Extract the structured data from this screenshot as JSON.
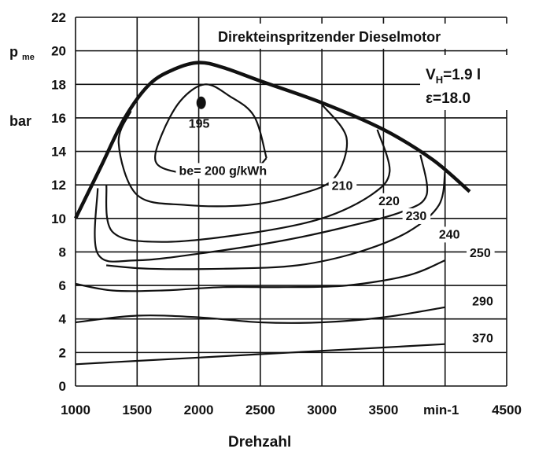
{
  "chart_data": {
    "type": "line",
    "title": "Direkteinspritzender Dieselmotor",
    "annotations": {
      "displacement": "1.9 l",
      "compression": "ε=18.0"
    },
    "xlabel": "Drehzahl",
    "x_unit": "min-1",
    "ylabel": "p",
    "ylabel_sub": "me",
    "y_unit": "bar",
    "xlim": [
      1000,
      4500
    ],
    "ylim": [
      0,
      22
    ],
    "x_ticks": [
      "1000",
      "1500",
      "2000",
      "2500",
      "3000",
      "3500",
      "4500"
    ],
    "y_ticks": [
      "0",
      "2",
      "4",
      "6",
      "8",
      "10",
      "12",
      "14",
      "16",
      "18",
      "20",
      "22"
    ],
    "grid": true,
    "full_load": [
      [
        1000,
        10
      ],
      [
        1200,
        13
      ],
      [
        1400,
        16
      ],
      [
        1600,
        18
      ],
      [
        1800,
        18.9
      ],
      [
        2000,
        19.3
      ],
      [
        2200,
        19
      ],
      [
        2500,
        18.2
      ],
      [
        3000,
        16.9
      ],
      [
        3500,
        15.3
      ],
      [
        3900,
        13.5
      ],
      [
        4200,
        11.6
      ]
    ],
    "optimum_point": {
      "x": 2020,
      "y": 16.9,
      "label": "195"
    },
    "series": [
      {
        "name": "be= 200 g/kWh",
        "label_pos": [
          1840,
          12.6
        ],
        "points": [
          [
            2550,
            13.6
          ],
          [
            2450,
            16.1
          ],
          [
            2250,
            17.3
          ],
          [
            2050,
            18.0
          ],
          [
            1850,
            17.0
          ],
          [
            1700,
            15.0
          ],
          [
            1650,
            13.4
          ],
          [
            1800,
            12.8
          ],
          [
            2000,
            12.8
          ],
          [
            2200,
            12.9
          ],
          [
            2450,
            13.0
          ],
          [
            2550,
            13.6
          ]
        ]
      },
      {
        "name": "210",
        "label_pos": [
          3080,
          11.7
        ],
        "points": [
          [
            3000,
            16.8
          ],
          [
            3200,
            14.8
          ],
          [
            3100,
            12.4
          ],
          [
            2800,
            11.4
          ],
          [
            2400,
            10.8
          ],
          [
            1900,
            10.8
          ],
          [
            1500,
            11.4
          ],
          [
            1350,
            14.5
          ],
          [
            1450,
            16.4
          ]
        ]
      },
      {
        "name": "220",
        "label_pos": [
          3460,
          10.8
        ],
        "points": [
          [
            3450,
            15.3
          ],
          [
            3550,
            12.8
          ],
          [
            3400,
            11.4
          ],
          [
            3000,
            10.0
          ],
          [
            2400,
            9.1
          ],
          [
            1700,
            8.6
          ],
          [
            1300,
            9.2
          ],
          [
            1250,
            12.0
          ]
        ]
      },
      {
        "name": "230",
        "label_pos": [
          3680,
          9.9
        ],
        "points": [
          [
            3800,
            13.8
          ],
          [
            3850,
            11.4
          ],
          [
            3650,
            10.4
          ],
          [
            3200,
            9.5
          ],
          [
            2700,
            8.7
          ],
          [
            2100,
            8.0
          ],
          [
            1500,
            7.5
          ],
          [
            1180,
            7.9
          ],
          [
            1180,
            11.8
          ]
        ]
      },
      {
        "name": "240",
        "label_pos": [
          3950,
          8.8
        ],
        "points": [
          [
            4000,
            12.8
          ],
          [
            3950,
            10.8
          ],
          [
            3700,
            9.2
          ],
          [
            3300,
            8.0
          ],
          [
            2800,
            7.2
          ],
          [
            2200,
            7.0
          ],
          [
            1600,
            7.0
          ],
          [
            1250,
            7.2
          ]
        ]
      },
      {
        "name": "250",
        "label_pos": [
          4200,
          7.7
        ],
        "points": [
          [
            1000,
            6.1
          ],
          [
            1300,
            5.7
          ],
          [
            1700,
            5.7
          ],
          [
            2200,
            5.9
          ],
          [
            2700,
            5.9
          ],
          [
            3200,
            6.0
          ],
          [
            3700,
            6.6
          ],
          [
            4000,
            7.5
          ]
        ]
      },
      {
        "name": "290",
        "label_pos": [
          4220,
          4.8
        ],
        "points": [
          [
            1000,
            3.8
          ],
          [
            1500,
            4.2
          ],
          [
            2000,
            4.1
          ],
          [
            2500,
            3.8
          ],
          [
            3000,
            3.8
          ],
          [
            3500,
            4.1
          ],
          [
            4000,
            4.7
          ]
        ]
      },
      {
        "name": "370",
        "label_pos": [
          4220,
          2.6
        ],
        "points": [
          [
            1000,
            1.3
          ],
          [
            1500,
            1.5
          ],
          [
            2000,
            1.7
          ],
          [
            2500,
            1.9
          ],
          [
            3000,
            2.1
          ],
          [
            3500,
            2.3
          ],
          [
            4000,
            2.5
          ]
        ]
      }
    ]
  }
}
